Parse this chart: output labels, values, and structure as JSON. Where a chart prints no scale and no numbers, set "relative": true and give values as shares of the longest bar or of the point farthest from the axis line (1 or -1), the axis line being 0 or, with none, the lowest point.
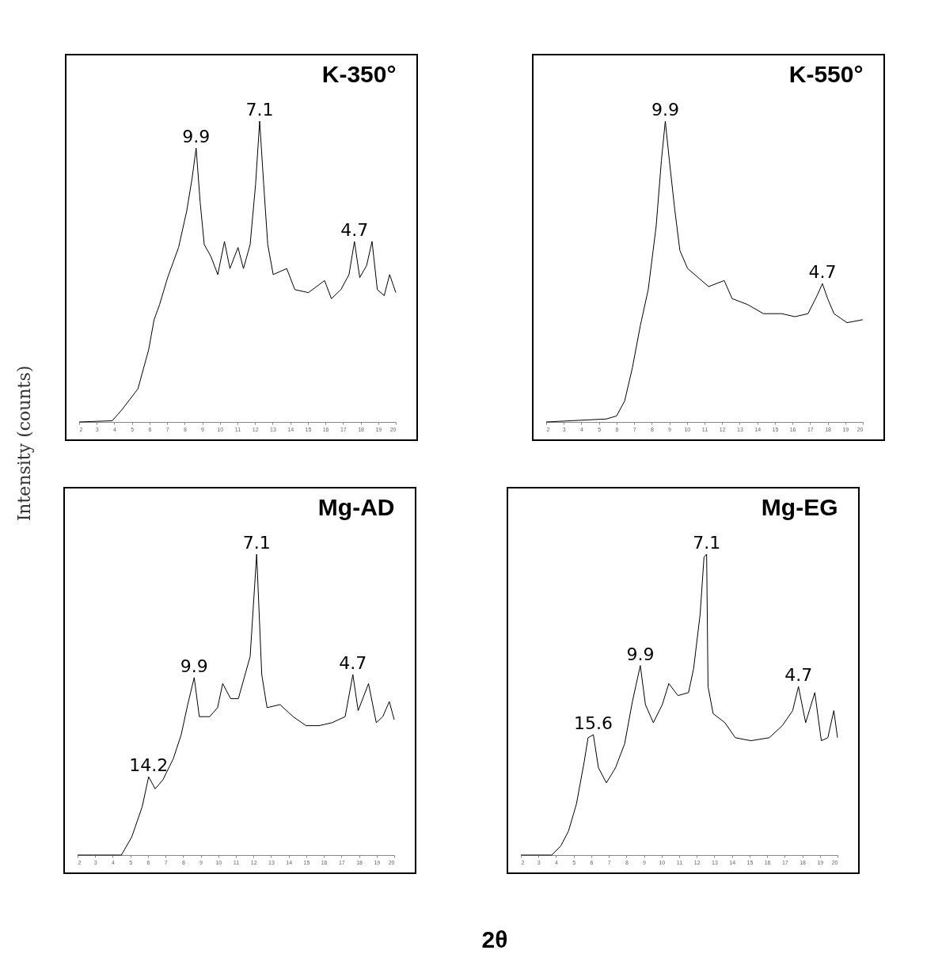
{
  "chart_data": [
    {
      "type": "line",
      "title": "K-350°",
      "ylabel": "Intensity (counts)",
      "relative": true,
      "xlim": [
        2,
        20
      ],
      "xticks": [
        2,
        3,
        4,
        5,
        6,
        7,
        8,
        9,
        10,
        11,
        12,
        13,
        14,
        15,
        16,
        17,
        18,
        19,
        20
      ],
      "tick_labels": "x",
      "grid": false,
      "legend": false,
      "marker": "none",
      "line_style": "solid",
      "series": [
        {
          "color": "#000000",
          "x": [
            2,
            3.88,
            4.42,
            5.34,
            5.95,
            6.26,
            6.57,
            7.03,
            7.65,
            8.11,
            8.42,
            8.65,
            8.88,
            9.11,
            9.49,
            9.88,
            10.26,
            10.57,
            11.03,
            11.34,
            11.72,
            12.03,
            12.26,
            12.49,
            12.72,
            13.03,
            13.8,
            14.26,
            15.03,
            15.95,
            16.34,
            16.88,
            17.34,
            17.65,
            17.95,
            18.34,
            18.65,
            18.95,
            19.34,
            19.65,
            20
          ],
          "values": [
            0,
            0.004,
            0.04,
            0.11,
            0.24,
            0.34,
            0.39,
            0.48,
            0.58,
            0.7,
            0.81,
            0.91,
            0.73,
            0.59,
            0.55,
            0.49,
            0.6,
            0.51,
            0.58,
            0.51,
            0.59,
            0.79,
            1,
            0.79,
            0.59,
            0.49,
            0.51,
            0.44,
            0.43,
            0.47,
            0.41,
            0.44,
            0.49,
            0.6,
            0.48,
            0.52,
            0.6,
            0.44,
            0.42,
            0.49,
            0.43
          ]
        }
      ],
      "annotations": [
        {
          "text": "9.9",
          "x": 8.65,
          "y": 0.91
        },
        {
          "text": "7.1",
          "x": 12.26,
          "y": 1
        },
        {
          "text": "4.7",
          "x": 17.65,
          "y": 0.6
        }
      ]
    },
    {
      "type": "line",
      "title": "K-550°",
      "relative": true,
      "xlim": [
        2,
        20
      ],
      "xticks": [
        2,
        3,
        4,
        5,
        6,
        7,
        8,
        9,
        10,
        11,
        12,
        13,
        14,
        15,
        16,
        17,
        18,
        19,
        20
      ],
      "tick_labels": "x",
      "grid": false,
      "legend": false,
      "marker": "none",
      "line_style": "solid",
      "series": [
        {
          "color": "#000000",
          "x": [
            2,
            5.42,
            6,
            6.46,
            6.9,
            7.35,
            7.8,
            8.25,
            8.55,
            8.77,
            9,
            9.3,
            9.6,
            10.04,
            10.64,
            11.23,
            12.12,
            12.57,
            13.46,
            14.35,
            15.39,
            16.14,
            16.88,
            17.4,
            17.7,
            18,
            18.36,
            19.1,
            20
          ],
          "values": [
            0,
            0.01,
            0.02,
            0.07,
            0.18,
            0.32,
            0.44,
            0.65,
            0.87,
            1,
            0.87,
            0.71,
            0.57,
            0.51,
            0.48,
            0.45,
            0.47,
            0.41,
            0.39,
            0.36,
            0.36,
            0.35,
            0.36,
            0.42,
            0.46,
            0.41,
            0.36,
            0.33,
            0.34
          ]
        }
      ],
      "annotations": [
        {
          "text": "9.9",
          "x": 8.77,
          "y": 1
        },
        {
          "text": "4.7",
          "x": 17.7,
          "y": 0.46
        }
      ]
    },
    {
      "type": "line",
      "title": "Mg-AD",
      "relative": true,
      "xlim": [
        2,
        20
      ],
      "xticks": [
        2,
        3,
        4,
        5,
        6,
        7,
        8,
        9,
        10,
        11,
        12,
        13,
        14,
        15,
        16,
        17,
        18,
        19,
        20
      ],
      "tick_labels": "x",
      "grid": false,
      "legend": false,
      "marker": "none",
      "line_style": "solid",
      "series": [
        {
          "color": "#000000",
          "x": [
            2,
            4.49,
            5.08,
            5.67,
            6.04,
            6.41,
            6.85,
            7.44,
            7.89,
            8.26,
            8.63,
            8.92,
            9.51,
            9.96,
            10.25,
            10.7,
            11.14,
            11.81,
            12.18,
            12.47,
            12.77,
            13.51,
            14.25,
            14.99,
            15.73,
            16.47,
            17.21,
            17.65,
            17.95,
            18.54,
            18.98,
            19.35,
            19.72,
            20
          ],
          "values": [
            0,
            0,
            0.06,
            0.16,
            0.26,
            0.22,
            0.25,
            0.32,
            0.4,
            0.5,
            0.59,
            0.46,
            0.46,
            0.49,
            0.57,
            0.52,
            0.52,
            0.66,
            1,
            0.6,
            0.49,
            0.5,
            0.46,
            0.43,
            0.43,
            0.44,
            0.46,
            0.6,
            0.48,
            0.57,
            0.44,
            0.46,
            0.51,
            0.45
          ]
        }
      ],
      "annotations": [
        {
          "text": "14.2",
          "x": 6.04,
          "y": 0.26
        },
        {
          "text": "9.9",
          "x": 8.63,
          "y": 0.59
        },
        {
          "text": "7.1",
          "x": 12.18,
          "y": 1
        },
        {
          "text": "4.7",
          "x": 17.65,
          "y": 0.6
        }
      ]
    },
    {
      "type": "line",
      "title": "Mg-EG",
      "xlabel": "2θ",
      "relative": true,
      "xlim": [
        2,
        20
      ],
      "xticks": [
        2,
        3,
        4,
        5,
        6,
        7,
        8,
        9,
        10,
        11,
        12,
        13,
        14,
        15,
        16,
        17,
        18,
        19,
        20
      ],
      "tick_labels": "x",
      "grid": false,
      "legend": false,
      "marker": "none",
      "line_style": "solid",
      "series": [
        {
          "color": "#000000",
          "x": [
            2,
            3.75,
            4.27,
            4.71,
            5.16,
            5.6,
            5.82,
            6.12,
            6.41,
            6.86,
            7.38,
            7.9,
            8.34,
            8.79,
            9.08,
            9.53,
            10.04,
            10.41,
            10.93,
            11.53,
            11.82,
            12.19,
            12.41,
            12.56,
            12.64,
            12.93,
            13.6,
            14.19,
            15.08,
            16.12,
            16.86,
            17.45,
            17.78,
            18.19,
            18.71,
            19.08,
            19.45,
            19.79,
            20
          ],
          "values": [
            0,
            0,
            0.03,
            0.08,
            0.17,
            0.31,
            0.39,
            0.4,
            0.29,
            0.24,
            0.29,
            0.37,
            0.51,
            0.63,
            0.5,
            0.44,
            0.5,
            0.57,
            0.53,
            0.54,
            0.62,
            0.8,
            0.99,
            1,
            0.56,
            0.47,
            0.44,
            0.39,
            0.38,
            0.39,
            0.43,
            0.48,
            0.56,
            0.44,
            0.54,
            0.38,
            0.39,
            0.48,
            0.39
          ]
        }
      ],
      "annotations": [
        {
          "text": "15.6",
          "x": 6.12,
          "y": 0.4
        },
        {
          "text": "9.9",
          "x": 8.79,
          "y": 0.63
        },
        {
          "text": "7.1",
          "x": 12.56,
          "y": 1
        },
        {
          "text": "4.7",
          "x": 17.78,
          "y": 0.56
        }
      ]
    }
  ]
}
